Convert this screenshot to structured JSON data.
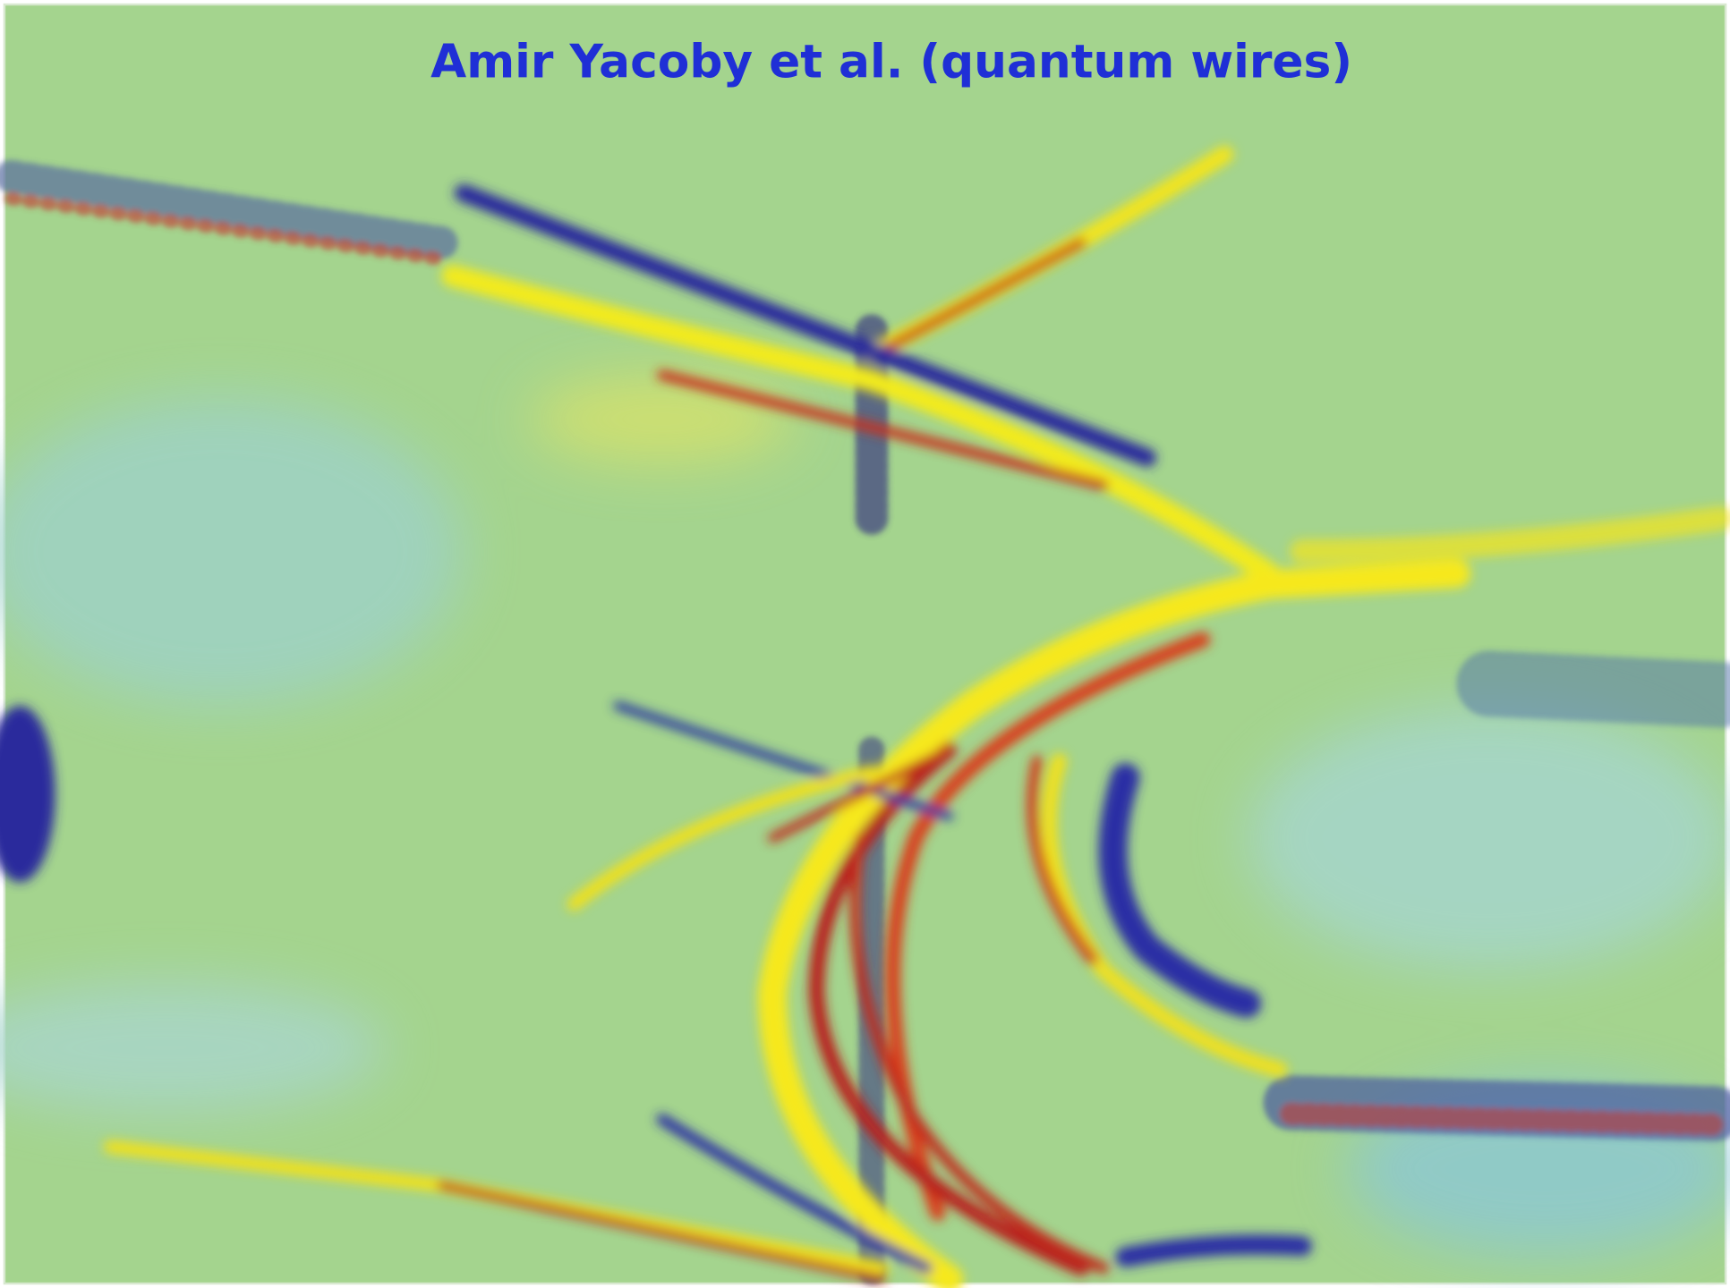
{
  "title": "Amir Yacoby et al. (quantum wires)"
}
